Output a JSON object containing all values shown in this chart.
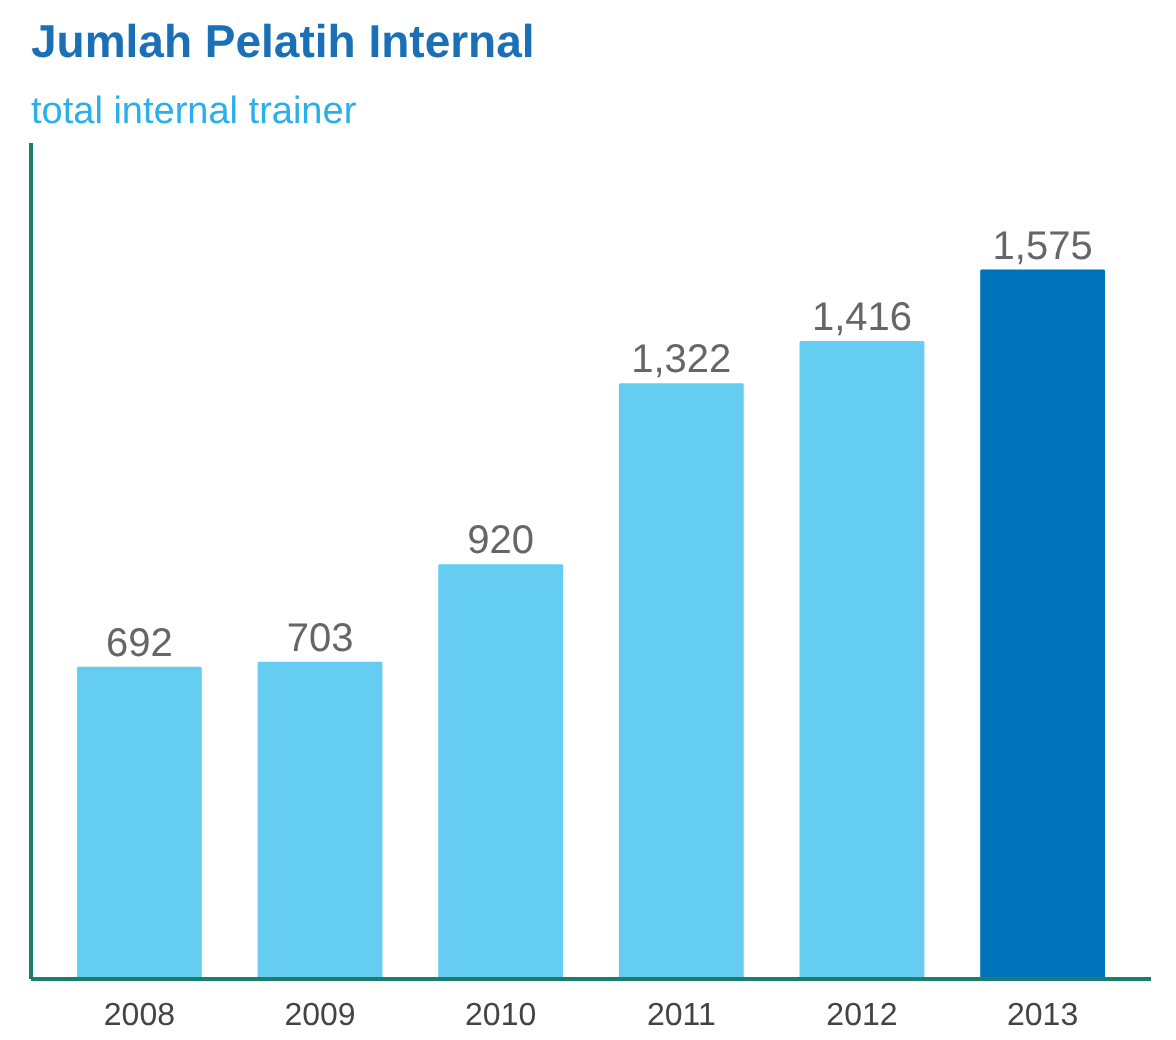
{
  "chart_data": {
    "type": "bar",
    "title": "Jumlah Pelatih Internal",
    "subtitle": "total internal trainer",
    "categories": [
      "2008",
      "2009",
      "2010",
      "2011",
      "2012",
      "2013"
    ],
    "values": [
      692,
      703,
      920,
      1322,
      1416,
      1575
    ],
    "colors": [
      "#66cdf2",
      "#66cdf2",
      "#66cdf2",
      "#66cdf2",
      "#66cdf2",
      "#0071bb"
    ],
    "value_labels": [
      "692",
      "703",
      "920",
      "1,322",
      "1,416",
      "1,575"
    ],
    "relative": false,
    "grid": false,
    "tick_labels": "x"
  }
}
